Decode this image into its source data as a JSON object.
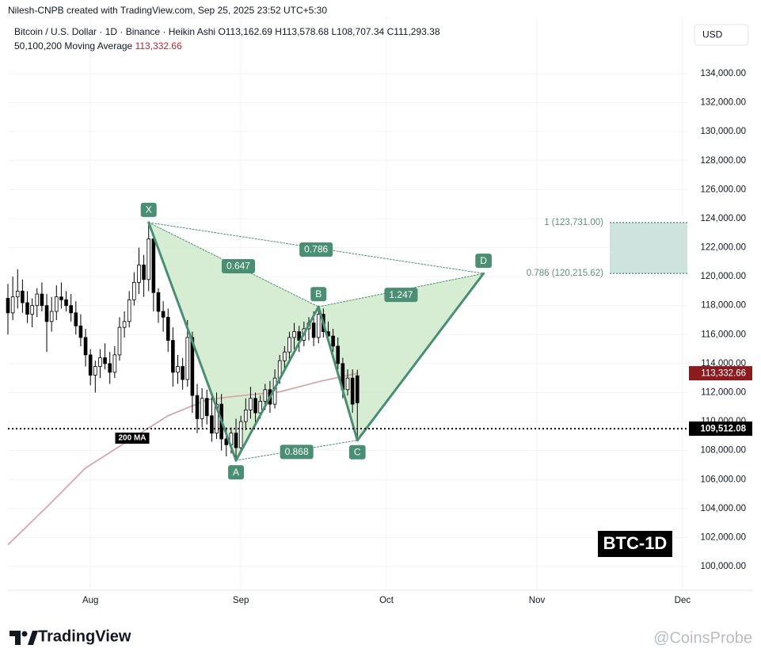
{
  "header": {
    "credit": "Nilesh-CNPB created with TradingView.com, Sep 25, 2025 23:52 UTC+5:30",
    "symbol": "Bitcoin / U.S. Dollar · 1D · Binance · Heikin Ashi",
    "ohlc": [
      "O113,162.69",
      "H113,578.68",
      "L108,707.34",
      "C111,293.38"
    ],
    "indicator": "50,100,200 Moving Average",
    "indicator_value": "113,332.66"
  },
  "currency": "USD",
  "badge": "BTC-1D",
  "logo": "TradingView",
  "watermark": "@CoinsProbe",
  "chart_data": {
    "type": "candlestick",
    "x": [
      -17,
      -16,
      -15,
      -14,
      -13,
      -12,
      -11,
      -10,
      -9,
      -8,
      -7,
      -6,
      -5,
      -4,
      -3,
      -2,
      -1,
      0,
      1,
      2,
      3,
      4,
      5,
      6,
      7,
      8,
      9,
      10,
      11,
      12,
      13,
      14,
      15,
      16,
      17,
      18,
      19,
      20,
      21,
      22,
      23,
      24,
      25,
      26,
      27,
      28,
      29,
      30,
      31,
      32,
      33,
      34,
      35,
      36,
      37,
      38,
      39,
      40,
      41,
      42,
      43,
      44,
      45,
      46,
      47,
      48,
      49,
      50,
      51,
      52,
      53,
      54,
      55
    ],
    "open": [
      118500,
      117500,
      118600,
      119000,
      118200,
      117400,
      118000,
      118800,
      118000,
      116900,
      117600,
      118600,
      118400,
      118000,
      117500,
      116600,
      115800,
      114600,
      113200,
      113800,
      114400,
      114000,
      113400,
      114600,
      116500,
      116900,
      118400,
      119600,
      120800,
      119800,
      122600,
      118900,
      117600,
      117200,
      115600,
      113400,
      113800,
      112900,
      115800,
      111800,
      110200,
      111600,
      110400,
      109200,
      111200,
      108800,
      108400,
      109200,
      108200,
      110000,
      110800,
      111600,
      110600,
      111400,
      112200,
      111200,
      113000,
      114200,
      114800,
      115800,
      116200,
      115600,
      116400,
      116800,
      115800,
      117400,
      116200,
      115900,
      115200,
      114000,
      112200,
      113000,
      113162.69
    ],
    "high": [
      119500,
      120000,
      120500,
      119800,
      119000,
      118500,
      119200,
      119600,
      118800,
      118600,
      119400,
      119600,
      119000,
      118800,
      118300,
      117400,
      116400,
      115000,
      114200,
      115000,
      115400,
      114800,
      115200,
      117200,
      117600,
      119000,
      120300,
      122000,
      121500,
      123731,
      123000,
      119200,
      118300,
      117800,
      116500,
      114600,
      114400,
      117000,
      116200,
      112600,
      112300,
      112200,
      111800,
      112000,
      111900,
      109600,
      109600,
      110200,
      110400,
      111600,
      112400,
      112000,
      111800,
      112600,
      112800,
      113600,
      114600,
      115200,
      116200,
      116800,
      116600,
      116900,
      117200,
      117600,
      117918,
      117800,
      116900,
      116400,
      115800,
      114400,
      113600,
      113600,
      113578.68
    ],
    "low": [
      116000,
      117000,
      117800,
      117500,
      116800,
      116500,
      117200,
      117600,
      114800,
      116200,
      117000,
      117800,
      117600,
      116900,
      116000,
      115200,
      113800,
      112500,
      112000,
      113000,
      113600,
      112600,
      113000,
      114200,
      115800,
      116500,
      118000,
      118800,
      118600,
      119000,
      117600,
      116800,
      116200,
      114800,
      112400,
      112600,
      112200,
      112400,
      110600,
      109200,
      109600,
      109800,
      108600,
      108800,
      108000,
      107600,
      107800,
      107318,
      107900,
      109400,
      110200,
      109800,
      110200,
      110800,
      110600,
      110900,
      112600,
      113600,
      114200,
      115000,
      114800,
      115200,
      115600,
      115200,
      115400,
      115800,
      115400,
      114800,
      113600,
      111600,
      111800,
      110600,
      108707.34
    ],
    "close": [
      117500,
      118600,
      119000,
      118200,
      117400,
      118000,
      118800,
      118000,
      116900,
      117600,
      118600,
      118400,
      118000,
      117500,
      116600,
      115800,
      114600,
      113200,
      113800,
      114400,
      114000,
      113400,
      114600,
      116500,
      116900,
      118400,
      119600,
      120800,
      119800,
      122600,
      118900,
      117600,
      117200,
      115600,
      113400,
      113800,
      112900,
      115800,
      111800,
      110200,
      111600,
      110400,
      109200,
      111200,
      108800,
      108400,
      109200,
      108200,
      110000,
      110800,
      111600,
      110600,
      111400,
      112200,
      111200,
      113000,
      114200,
      114800,
      115800,
      116200,
      115600,
      116400,
      116800,
      115800,
      117400,
      116200,
      115900,
      115200,
      114000,
      112200,
      113000,
      111200,
      111293.38
    ],
    "xlim": [
      -17,
      123
    ],
    "xticks": [
      {
        "value": 0,
        "label": "Aug"
      },
      {
        "value": 31,
        "label": "Sep"
      },
      {
        "value": 61,
        "label": "Oct"
      },
      {
        "value": 92,
        "label": "Nov"
      },
      {
        "value": 122,
        "label": "Dec"
      }
    ],
    "ylim": [
      98360,
      137990
    ],
    "yticks": [
      {
        "value": 100000,
        "label": "100,000.00"
      },
      {
        "value": 102000,
        "label": "102,000.00"
      },
      {
        "value": 104000,
        "label": "104,000.00"
      },
      {
        "value": 106000,
        "label": "106,000.00"
      },
      {
        "value": 108000,
        "label": "108,000.00"
      },
      {
        "value": 110000,
        "label": "110,000.00"
      },
      {
        "value": 112000,
        "label": "112,000.00"
      },
      {
        "value": 114000,
        "label": "114,000.00"
      },
      {
        "value": 116000,
        "label": "116,000.00"
      },
      {
        "value": 118000,
        "label": "118,000.00"
      },
      {
        "value": 120000,
        "label": "120,000.00"
      },
      {
        "value": 122000,
        "label": "122,000.00"
      },
      {
        "value": 124000,
        "label": "124,000.00"
      },
      {
        "value": 126000,
        "label": "126,000.00"
      },
      {
        "value": 128000,
        "label": "128,000.00"
      },
      {
        "value": 130000,
        "label": "130,000.00"
      },
      {
        "value": 132000,
        "label": "132,000.00"
      },
      {
        "value": 134000,
        "label": "134,000.00"
      }
    ],
    "grid": true,
    "up_color": "#ffffff",
    "down_color": "#000000",
    "moving_average": {
      "name": "200 MA",
      "color": "#d4a9ab",
      "x": [
        -17,
        -9,
        -1,
        7,
        16,
        24,
        30,
        39,
        47,
        55
      ],
      "values": [
        101500,
        104100,
        106800,
        108500,
        110400,
        111500,
        111750,
        112050,
        112750,
        113332.66
      ],
      "value_label": "113,332.66"
    },
    "last_price": {
      "value": 109512.08,
      "label": "109,512.08"
    },
    "pattern": [
      {
        "label": "X",
        "x": 12,
        "value": 123731
      },
      {
        "label": "A",
        "x": 30,
        "value": 107318
      },
      {
        "label": "B",
        "x": 47,
        "value": 117918
      },
      {
        "label": "C",
        "x": 55,
        "value": 108707.34
      },
      {
        "label": "D",
        "x": 81,
        "value": 120215.62
      }
    ],
    "ratios": [
      "0.647",
      "0.786",
      "1.247",
      "0.868"
    ],
    "fib_levels": [
      {
        "value": 123731,
        "label": "1 (123,731.00)"
      },
      {
        "value": 120215.62,
        "label": "0.786 (120,215.62)"
      }
    ],
    "pattern_color": "#4a8f73",
    "pattern_fill": "#cde9c8"
  }
}
